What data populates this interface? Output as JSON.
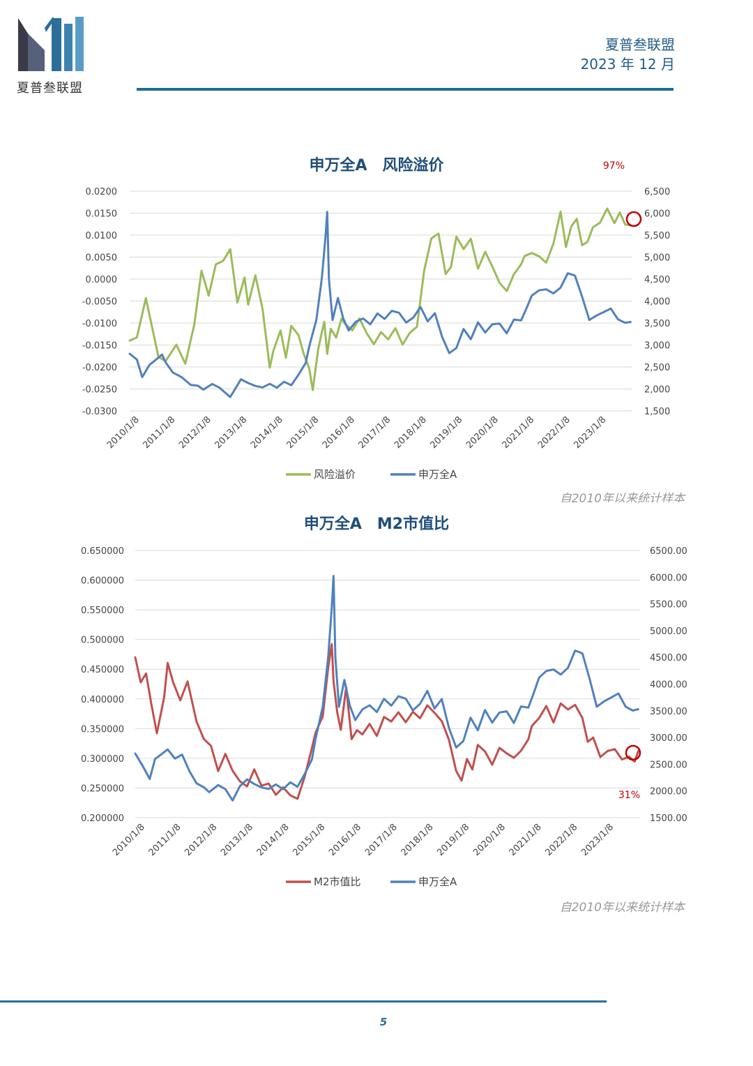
{
  "header": {
    "logo_text": "夏普叁联盟",
    "org": "夏普叁联盟",
    "date": "2023 年 12 月"
  },
  "colors": {
    "green": "#9bbb59",
    "blue": "#4f81bd",
    "red": "#c0504d",
    "title": "#1f4e79",
    "accent_red": "#c00000",
    "rule": "#1f6c95"
  },
  "icons": {
    "logo": "building-bars-logo",
    "marker": "red-circle-marker"
  },
  "page_number": "5",
  "chart_data": [
    {
      "type": "line",
      "title": "申万全A　风险溢价",
      "callout": "97%",
      "note": "自2010年以来统计样本",
      "x_ticks": [
        "2010/1/8",
        "2011/1/8",
        "2012/1/8",
        "2013/1/8",
        "2014/1/8",
        "2015/1/8",
        "2016/1/8",
        "2017/1/8",
        "2018/1/8",
        "2019/1/8",
        "2020/1/8",
        "2021/1/8",
        "2022/1/8",
        "2023/1/8"
      ],
      "y_left": {
        "ticks": [
          "0.0200",
          "0.0150",
          "0.0100",
          "0.0050",
          "0.0000",
          "-0.0050",
          "-0.0100",
          "-0.0150",
          "-0.0200",
          "-0.0250",
          "-0.0300"
        ],
        "lim": [
          -0.03,
          0.02
        ]
      },
      "y_right": {
        "ticks": [
          "6,500",
          "6,000",
          "5,500",
          "5,000",
          "4,500",
          "4,000",
          "3,500",
          "3,000",
          "2,500",
          "2,000",
          "1,500"
        ],
        "lim": [
          1500,
          6500
        ]
      },
      "legend": [
        "风险溢价",
        "申万全A"
      ],
      "series": [
        {
          "name": "风险溢价",
          "axis": "left",
          "color": "#9bbb59",
          "x": [
            2010.0,
            2010.2,
            2010.45,
            2010.6,
            2010.8,
            2011.0,
            2011.3,
            2011.55,
            2011.8,
            2012.0,
            2012.2,
            2012.4,
            2012.6,
            2012.8,
            2013.0,
            2013.2,
            2013.3,
            2013.5,
            2013.7,
            2013.9,
            2014.0,
            2014.2,
            2014.35,
            2014.5,
            2014.7,
            2014.85,
            2015.0,
            2015.1,
            2015.25,
            2015.35,
            2015.42,
            2015.5,
            2015.6,
            2015.75,
            2015.9,
            2016.0,
            2016.2,
            2016.4,
            2016.6,
            2016.8,
            2017.0,
            2017.2,
            2017.4,
            2017.6,
            2017.8,
            2018.0,
            2018.2,
            2018.4,
            2018.6,
            2018.8,
            2018.95,
            2019.1,
            2019.3,
            2019.5,
            2019.7,
            2019.9,
            2020.1,
            2020.3,
            2020.5,
            2020.7,
            2020.9,
            2021.0,
            2021.2,
            2021.4,
            2021.6,
            2021.8,
            2022.0,
            2022.15,
            2022.3,
            2022.45,
            2022.6,
            2022.75,
            2022.9,
            2023.1,
            2023.3,
            2023.5,
            2023.65,
            2023.8,
            2023.95
          ],
          "y": [
            -0.014,
            -0.013,
            -0.004,
            -0.01,
            -0.018,
            -0.019,
            -0.015,
            -0.019,
            -0.01,
            0.002,
            -0.004,
            0.003,
            0.004,
            0.007,
            -0.005,
            0.0005,
            -0.006,
            0.0005,
            -0.007,
            -0.02,
            -0.016,
            -0.0115,
            -0.018,
            -0.011,
            -0.013,
            -0.017,
            -0.02,
            -0.025,
            -0.016,
            -0.0125,
            -0.01,
            -0.017,
            -0.011,
            -0.013,
            -0.009,
            -0.0105,
            -0.012,
            -0.009,
            -0.012,
            -0.0145,
            -0.012,
            -0.014,
            -0.0115,
            -0.015,
            -0.012,
            -0.0105,
            0.002,
            0.009,
            0.01,
            0.001,
            0.003,
            0.01,
            0.007,
            0.009,
            0.002,
            0.006,
            0.003,
            -0.0005,
            -0.0025,
            0.001,
            0.003,
            0.005,
            0.006,
            0.0055,
            0.004,
            0.008,
            0.015,
            0.007,
            0.012,
            0.014,
            0.008,
            0.0085,
            0.0115,
            0.0125,
            0.016,
            0.013,
            0.0155,
            0.0125,
            0.012
          ]
        },
        {
          "name": "申万全A",
          "axis": "right",
          "color": "#4f81bd",
          "x": [
            2010.0,
            2010.2,
            2010.35,
            2010.55,
            2010.75,
            2010.9,
            2011.0,
            2011.2,
            2011.45,
            2011.7,
            2011.9,
            2012.05,
            2012.3,
            2012.5,
            2012.8,
            2013.0,
            2013.1,
            2013.3,
            2013.5,
            2013.7,
            2013.9,
            2014.1,
            2014.3,
            2014.5,
            2014.7,
            2014.9,
            2015.0,
            2015.2,
            2015.35,
            2015.45,
            2015.5,
            2015.55,
            2015.65,
            2015.8,
            2015.95,
            2016.1,
            2016.3,
            2016.5,
            2016.7,
            2016.9,
            2017.1,
            2017.3,
            2017.5,
            2017.7,
            2017.9,
            2018.1,
            2018.3,
            2018.5,
            2018.7,
            2018.9,
            2019.1,
            2019.3,
            2019.5,
            2019.7,
            2019.9,
            2020.1,
            2020.3,
            2020.5,
            2020.7,
            2020.9,
            2021.05,
            2021.2,
            2021.4,
            2021.6,
            2021.8,
            2022.0,
            2022.2,
            2022.4,
            2022.6,
            2022.8,
            2023.0,
            2023.2,
            2023.4,
            2023.6,
            2023.8,
            2023.95
          ],
          "y": [
            2800,
            2700,
            2300,
            2550,
            2650,
            2750,
            2600,
            2400,
            2300,
            2100,
            2050,
            1950,
            2100,
            2050,
            1850,
            2100,
            2200,
            2100,
            2050,
            2050,
            2150,
            2050,
            2150,
            2050,
            2300,
            2600,
            3000,
            3600,
            4500,
            5400,
            6000,
            4500,
            3600,
            4100,
            3600,
            3300,
            3500,
            3600,
            3500,
            3750,
            3600,
            3750,
            3700,
            3500,
            3650,
            3900,
            3550,
            3700,
            3150,
            2800,
            2950,
            3400,
            3150,
            3500,
            3250,
            3450,
            3500,
            3300,
            3600,
            3550,
            3800,
            4100,
            4250,
            4300,
            4200,
            4300,
            4600,
            4550,
            4100,
            3600,
            3700,
            3750,
            3800,
            3550,
            3500,
            3550
          ]
        }
      ]
    },
    {
      "type": "line",
      "title": "申万全A　M2市值比",
      "callout": "31%",
      "note": "自2010年以来统计样本",
      "x_ticks": [
        "2010/1/8",
        "2011/1/8",
        "2012/1/8",
        "2013/1/8",
        "2014/1/8",
        "2015/1/8",
        "2016/1/8",
        "2017/1/8",
        "2018/1/8",
        "2019/1/8",
        "2020/1/8",
        "2021/1/8",
        "2022/1/8",
        "2023/1/8"
      ],
      "y_left": {
        "ticks": [
          "0.650000",
          "0.600000",
          "0.550000",
          "0.500000",
          "0.450000",
          "0.400000",
          "0.350000",
          "0.300000",
          "0.250000",
          "0.200000"
        ],
        "lim": [
          0.2,
          0.65
        ]
      },
      "y_right": {
        "ticks": [
          "6500.00",
          "6000.00",
          "5500.00",
          "5000.00",
          "4500.00",
          "4000.00",
          "3500.00",
          "3000.00",
          "2500.00",
          "2000.00",
          "1500.00"
        ],
        "lim": [
          1500,
          6500
        ]
      },
      "legend": [
        "M2市值比",
        "申万全A"
      ],
      "series": [
        {
          "name": "M2市值比",
          "axis": "left",
          "color": "#c0504d",
          "x": [
            2010.0,
            2010.15,
            2010.3,
            2010.45,
            2010.6,
            2010.8,
            2010.9,
            2011.05,
            2011.25,
            2011.45,
            2011.7,
            2011.9,
            2012.1,
            2012.3,
            2012.5,
            2012.7,
            2012.9,
            2013.1,
            2013.3,
            2013.5,
            2013.7,
            2013.9,
            2014.1,
            2014.3,
            2014.5,
            2014.7,
            2014.9,
            2015.0,
            2015.2,
            2015.35,
            2015.45,
            2015.5,
            2015.6,
            2015.7,
            2015.85,
            2016.0,
            2016.15,
            2016.3,
            2016.5,
            2016.7,
            2016.9,
            2017.1,
            2017.3,
            2017.5,
            2017.7,
            2017.9,
            2018.1,
            2018.3,
            2018.5,
            2018.7,
            2018.9,
            2019.05,
            2019.2,
            2019.35,
            2019.5,
            2019.7,
            2019.9,
            2020.1,
            2020.3,
            2020.5,
            2020.7,
            2020.9,
            2021.0,
            2021.2,
            2021.4,
            2021.6,
            2021.8,
            2022.0,
            2022.2,
            2022.4,
            2022.55,
            2022.7,
            2022.9,
            2023.1,
            2023.3,
            2023.5,
            2023.7,
            2023.85,
            2023.95
          ],
          "y": [
            0.47,
            0.43,
            0.445,
            0.39,
            0.34,
            0.4,
            0.46,
            0.43,
            0.4,
            0.43,
            0.36,
            0.33,
            0.32,
            0.28,
            0.31,
            0.28,
            0.26,
            0.25,
            0.28,
            0.255,
            0.26,
            0.24,
            0.25,
            0.235,
            0.23,
            0.27,
            0.32,
            0.345,
            0.37,
            0.45,
            0.49,
            0.43,
            0.38,
            0.35,
            0.42,
            0.33,
            0.345,
            0.34,
            0.36,
            0.34,
            0.37,
            0.36,
            0.375,
            0.36,
            0.38,
            0.37,
            0.39,
            0.375,
            0.36,
            0.33,
            0.28,
            0.265,
            0.3,
            0.28,
            0.32,
            0.31,
            0.29,
            0.32,
            0.31,
            0.3,
            0.31,
            0.33,
            0.355,
            0.37,
            0.39,
            0.36,
            0.39,
            0.38,
            0.39,
            0.37,
            0.33,
            0.335,
            0.3,
            0.31,
            0.315,
            0.3,
            0.305,
            0.295,
            0.31
          ]
        },
        {
          "name": "申万全A",
          "axis": "right",
          "color": "#4f81bd",
          "x": [
            2010.0,
            2010.2,
            2010.4,
            2010.55,
            2010.7,
            2010.9,
            2011.1,
            2011.3,
            2011.5,
            2011.7,
            2011.9,
            2012.05,
            2012.3,
            2012.5,
            2012.7,
            2012.9,
            2013.1,
            2013.3,
            2013.5,
            2013.7,
            2013.9,
            2014.1,
            2014.3,
            2014.5,
            2014.7,
            2014.9,
            2015.0,
            2015.2,
            2015.35,
            2015.45,
            2015.5,
            2015.55,
            2015.65,
            2015.8,
            2015.95,
            2016.1,
            2016.3,
            2016.5,
            2016.7,
            2016.9,
            2017.1,
            2017.3,
            2017.5,
            2017.7,
            2017.9,
            2018.1,
            2018.3,
            2018.5,
            2018.7,
            2018.9,
            2019.1,
            2019.3,
            2019.5,
            2019.7,
            2019.9,
            2020.1,
            2020.3,
            2020.5,
            2020.7,
            2020.9,
            2021.05,
            2021.2,
            2021.4,
            2021.6,
            2021.8,
            2022.0,
            2022.2,
            2022.4,
            2022.6,
            2022.8,
            2023.0,
            2023.2,
            2023.4,
            2023.6,
            2023.8,
            2023.95
          ],
          "y": [
            2700,
            2500,
            2250,
            2600,
            2650,
            2750,
            2600,
            2700,
            2400,
            2150,
            2050,
            1950,
            2100,
            2050,
            1850,
            2100,
            2200,
            2100,
            2050,
            2050,
            2150,
            2050,
            2150,
            2050,
            2300,
            2600,
            3000,
            3600,
            4500,
            5400,
            6000,
            4500,
            3600,
            4100,
            3600,
            3300,
            3500,
            3600,
            3500,
            3750,
            3600,
            3750,
            3700,
            3500,
            3650,
            3900,
            3550,
            3700,
            3150,
            2800,
            2950,
            3400,
            3150,
            3500,
            3250,
            3450,
            3500,
            3300,
            3600,
            3550,
            3800,
            4100,
            4250,
            4300,
            4200,
            4300,
            4600,
            4550,
            4100,
            3600,
            3700,
            3750,
            3800,
            3550,
            3500,
            3550
          ]
        }
      ]
    }
  ]
}
